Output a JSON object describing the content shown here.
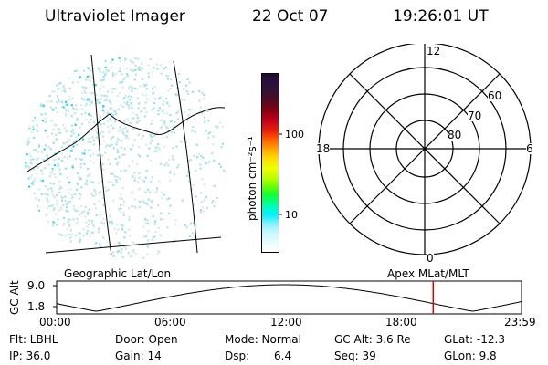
{
  "header": {
    "title": "Ultraviolet Imager",
    "date": "22 Oct 07",
    "time": "19:26:01 UT"
  },
  "colorbar": {
    "label": "photon cm⁻²s⁻¹",
    "ticks": [
      "100",
      "10"
    ],
    "colors": [
      "#1a0a2e",
      "#2a1040",
      "#3a1030",
      "#5a0a20",
      "#8a0010",
      "#c0001a",
      "#e8200a",
      "#ff6000",
      "#ffa000",
      "#ffd800",
      "#f0ff00",
      "#c0ff00",
      "#70ff00",
      "#10ff30",
      "#00ffb0",
      "#00f0ff",
      "#80f0ff",
      "#c8f8ff",
      "#e8fcff",
      "#ffffff"
    ]
  },
  "polar": {
    "mlt_labels": {
      "top": "12",
      "bottom": "0",
      "left": "18",
      "right": "6"
    },
    "lat_labels": [
      "60",
      "70",
      "80"
    ]
  },
  "panel_labels": {
    "left": "Geographic Lat/Lon",
    "right": "Apex MLat/MLT"
  },
  "altitude_plot": {
    "ylabel": "GC Alt",
    "yticks": [
      "9.0",
      "1.8"
    ],
    "xticks": [
      "00:00",
      "06:00",
      "12:00",
      "18:00",
      "23:59"
    ],
    "current_time_fraction": 0.81,
    "marker_color": "#e00000"
  },
  "info": {
    "flt": "Flt: LBHL",
    "door": "Door: Open",
    "mode": "Mode: Normal",
    "gcalt": "GC Alt: 3.6 Re",
    "glat": "GLat: -12.3",
    "ip": "IP: 36.0",
    "gain": "Gain: 14",
    "dsp_label": "Dsp:",
    "dsp_value": "6.4",
    "seq": "Seq: 39",
    "glon": "GLon:  9.8"
  },
  "image_colors": {
    "speckle_a": "#bfe6e0",
    "speckle_b": "#9fe0f0",
    "speckle_c": "#30d0e8",
    "speckle_d": "#d8ece6"
  }
}
